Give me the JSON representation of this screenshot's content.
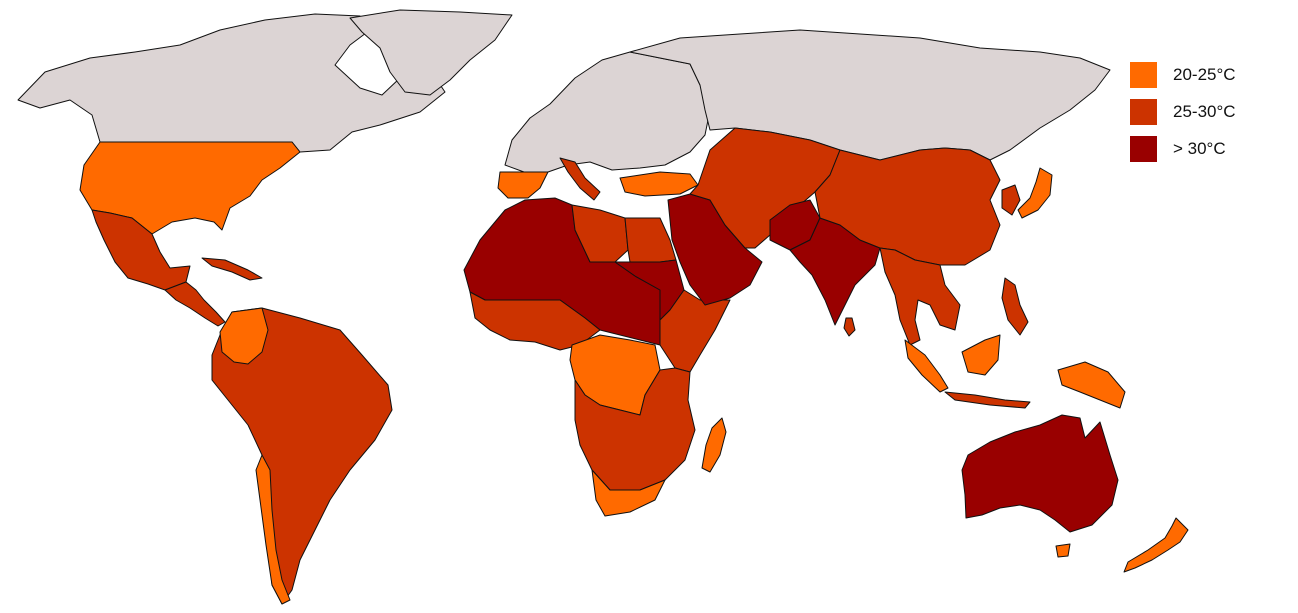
{
  "colors": {
    "no_data": "#dcd4d4",
    "band_20_25": "#ff6a00",
    "band_25_30": "#cc3300",
    "band_gt_30": "#990000",
    "border": "#111111",
    "ocean": "#ffffff"
  },
  "legend": {
    "position": "top-right",
    "items": [
      {
        "label": "20-25°C",
        "color": "#ff6a00"
      },
      {
        "label": "25-30°C",
        "color": "#cc3300"
      },
      {
        "label": "> 30°C",
        "color": "#990000"
      }
    ]
  },
  "regions": [
    {
      "name": "canada",
      "band": "no_data"
    },
    {
      "name": "greenland",
      "band": "no_data"
    },
    {
      "name": "europe",
      "band": "no_data"
    },
    {
      "name": "russia",
      "band": "no_data"
    },
    {
      "name": "usa",
      "band": "band_20_25"
    },
    {
      "name": "mexico",
      "band": "band_25_30"
    },
    {
      "name": "central-america",
      "band": "band_25_30"
    },
    {
      "name": "cuba",
      "band": "band_25_30"
    },
    {
      "name": "colombia",
      "band": "band_20_25"
    },
    {
      "name": "south-america",
      "band": "band_25_30"
    },
    {
      "name": "chile",
      "band": "band_20_25"
    },
    {
      "name": "iberia",
      "band": "band_20_25"
    },
    {
      "name": "italy",
      "band": "band_25_30"
    },
    {
      "name": "turkey",
      "band": "band_20_25"
    },
    {
      "name": "sahara",
      "band": "band_gt_30"
    },
    {
      "name": "libya",
      "band": "band_25_30"
    },
    {
      "name": "egypt",
      "band": "band_25_30"
    },
    {
      "name": "sudan",
      "band": "band_gt_30"
    },
    {
      "name": "arabia",
      "band": "band_gt_30"
    },
    {
      "name": "west-africa",
      "band": "band_25_30"
    },
    {
      "name": "horn-of-africa",
      "band": "band_25_30"
    },
    {
      "name": "congo",
      "band": "band_20_25"
    },
    {
      "name": "southern-africa",
      "band": "band_25_30"
    },
    {
      "name": "south-africa",
      "band": "band_20_25"
    },
    {
      "name": "madagascar",
      "band": "band_20_25"
    },
    {
      "name": "iran-central-asia",
      "band": "band_25_30"
    },
    {
      "name": "pakistan",
      "band": "band_gt_30"
    },
    {
      "name": "india",
      "band": "band_gt_30"
    },
    {
      "name": "sri-lanka",
      "band": "band_25_30"
    },
    {
      "name": "china",
      "band": "band_25_30"
    },
    {
      "name": "korea",
      "band": "band_25_30"
    },
    {
      "name": "japan",
      "band": "band_20_25"
    },
    {
      "name": "southeast-asia",
      "band": "band_25_30"
    },
    {
      "name": "philippines",
      "band": "band_25_30"
    },
    {
      "name": "sumatra",
      "band": "band_20_25"
    },
    {
      "name": "borneo",
      "band": "band_20_25"
    },
    {
      "name": "java",
      "band": "band_25_30"
    },
    {
      "name": "new-guinea",
      "band": "band_20_25"
    },
    {
      "name": "australia",
      "band": "band_gt_30"
    },
    {
      "name": "tasmania",
      "band": "band_20_25"
    },
    {
      "name": "new-zealand",
      "band": "band_20_25"
    }
  ]
}
